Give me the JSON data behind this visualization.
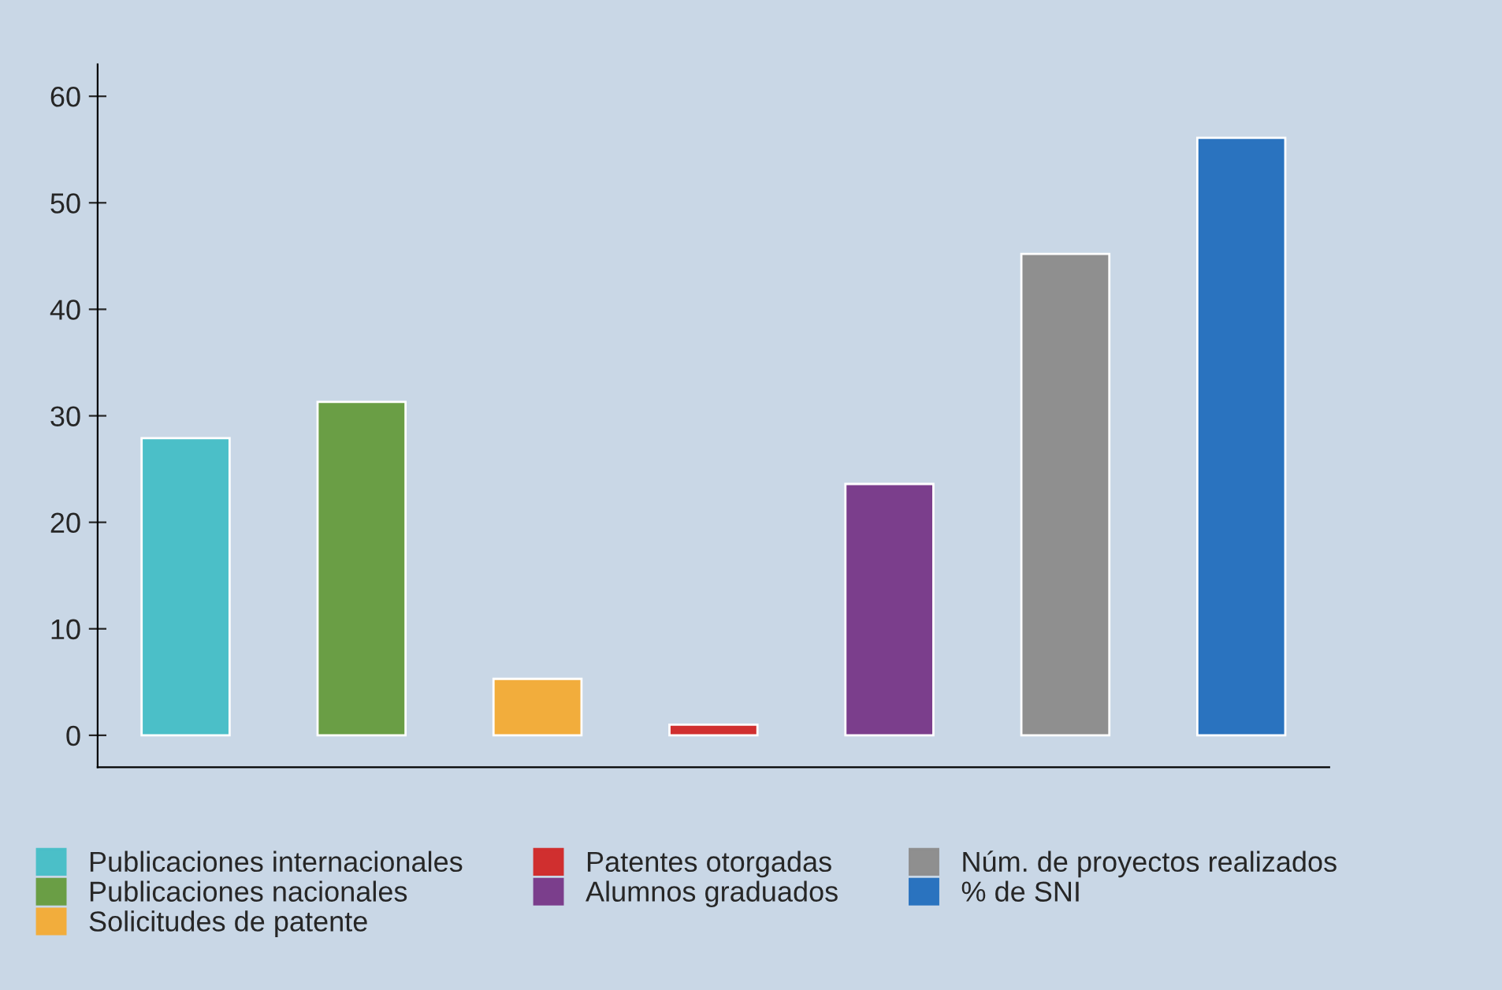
{
  "chart_data": {
    "type": "bar",
    "categories": [
      null,
      null,
      null,
      null,
      null,
      null,
      null
    ],
    "series": [
      {
        "name": "Publicaciones internacionales",
        "color": "#4bbfc8",
        "values": [
          27.9,
          null,
          null,
          null,
          null,
          null,
          null
        ]
      },
      {
        "name": "Publicaciones nacionales",
        "color": "#6a9e45",
        "values": [
          null,
          31.3,
          null,
          null,
          null,
          null,
          null
        ]
      },
      {
        "name": "Solicitudes de patente",
        "color": "#f2ad3c",
        "values": [
          null,
          null,
          5.3,
          null,
          null,
          null,
          null
        ]
      },
      {
        "name": "Patentes otorgadas",
        "color": "#d02f2f",
        "values": [
          null,
          null,
          null,
          1,
          null,
          null,
          null
        ]
      },
      {
        "name": "Alumnos graduados",
        "color": "#7b3e8c",
        "values": [
          null,
          null,
          null,
          null,
          23.6,
          null,
          null
        ]
      },
      {
        "name": "Núm. de proyectos realizados",
        "color": "#8f8f8f",
        "values": [
          null,
          null,
          null,
          null,
          null,
          45.2,
          null
        ]
      },
      {
        "name": "% de SNI",
        "color": "#2a73bf",
        "values": [
          null,
          null,
          null,
          null,
          null,
          null,
          56.1
        ]
      }
    ],
    "ylim": [
      -3,
      63
    ],
    "yticks": [
      0,
      10,
      20,
      30,
      40,
      50,
      60
    ],
    "grid": false,
    "legend": "bottom"
  }
}
